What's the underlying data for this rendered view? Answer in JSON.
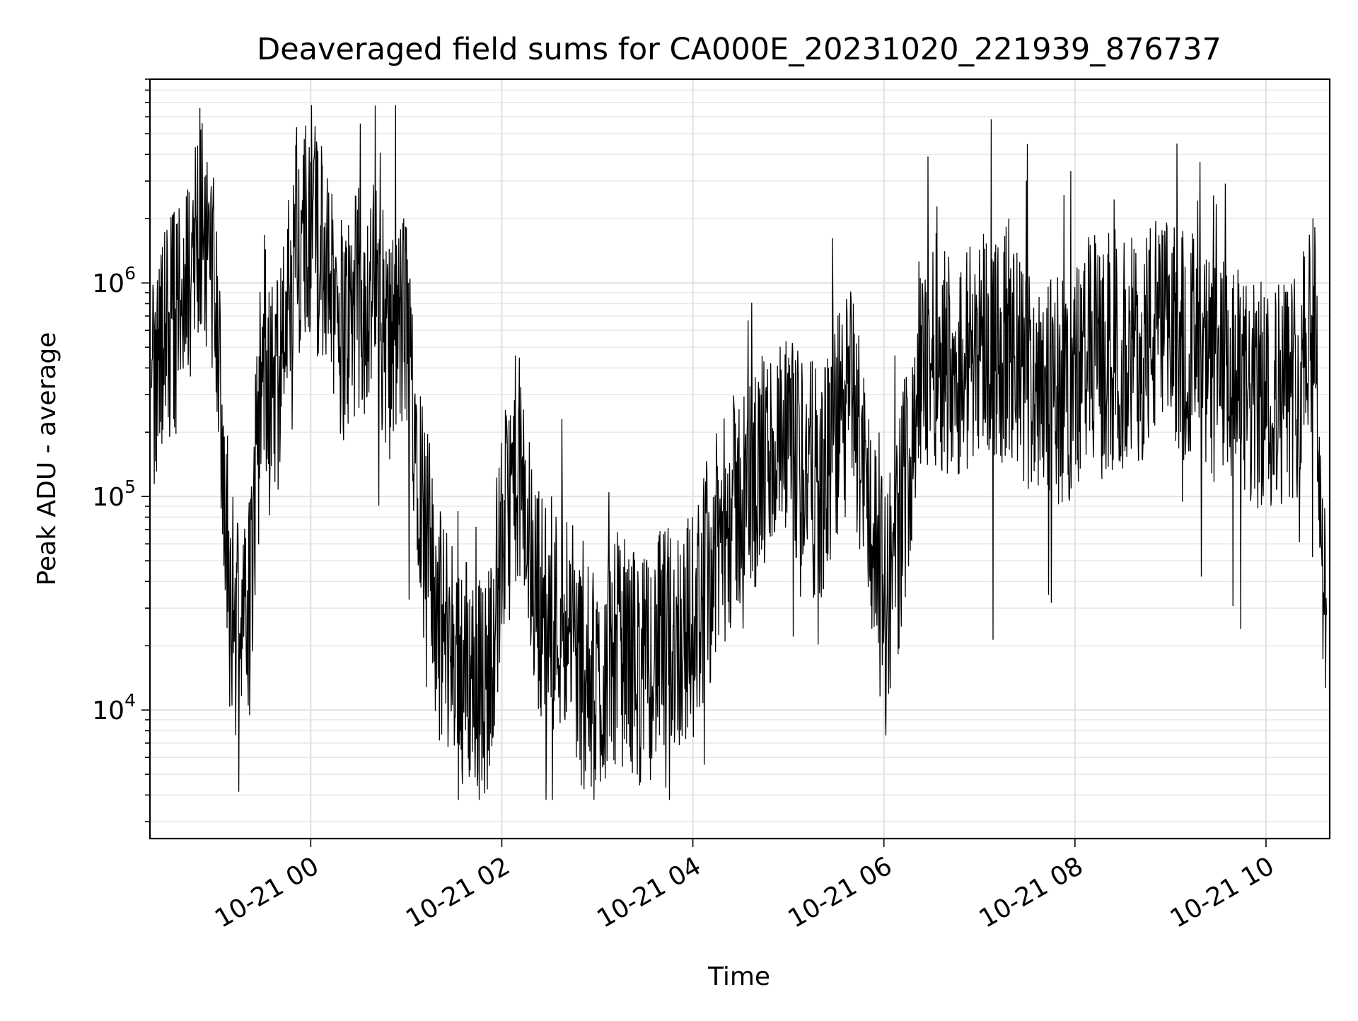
{
  "chart_data": {
    "type": "line",
    "title": "Deaveraged field sums for CA000E_20231020_221939_876737",
    "xlabel": "Time",
    "ylabel": "Peak ADU - average",
    "yscale": "log",
    "xlim": [
      "2023-10-20 22:19",
      "2023-10-21 10:40"
    ],
    "ylim": [
      2500,
      9000000
    ],
    "grid": true,
    "x_ticks": [
      {
        "value": "2023-10-21 00:00",
        "label": "10-21 00"
      },
      {
        "value": "2023-10-21 02:00",
        "label": "10-21 02"
      },
      {
        "value": "2023-10-21 04:00",
        "label": "10-21 04"
      },
      {
        "value": "2023-10-21 06:00",
        "label": "10-21 06"
      },
      {
        "value": "2023-10-21 08:00",
        "label": "10-21 08"
      },
      {
        "value": "2023-10-21 10:00",
        "label": "10-21 10"
      }
    ],
    "y_ticks": [
      {
        "value": 10000,
        "base": "10",
        "exp": "4"
      },
      {
        "value": 100000,
        "base": "10",
        "exp": "5"
      },
      {
        "value": 1000000,
        "base": "10",
        "exp": "6"
      }
    ],
    "series": [
      {
        "color": "#000000",
        "x": [
          "2023-10-20 22:20",
          "2023-10-20 22:30",
          "2023-10-20 22:40",
          "2023-10-20 22:50",
          "2023-10-20 23:00",
          "2023-10-20 23:10",
          "2023-10-20 23:20",
          "2023-10-20 23:30",
          "2023-10-20 23:40",
          "2023-10-20 23:50",
          "2023-10-21 00:00",
          "2023-10-21 00:10",
          "2023-10-21 00:20",
          "2023-10-21 00:30",
          "2023-10-21 00:40",
          "2023-10-21 00:50",
          "2023-10-21 01:00",
          "2023-10-21 01:10",
          "2023-10-21 01:20",
          "2023-10-21 01:30",
          "2023-10-21 01:40",
          "2023-10-21 01:50",
          "2023-10-21 02:00",
          "2023-10-21 02:10",
          "2023-10-21 02:20",
          "2023-10-21 02:30",
          "2023-10-21 02:40",
          "2023-10-21 02:50",
          "2023-10-21 03:00",
          "2023-10-21 03:10",
          "2023-10-21 03:20",
          "2023-10-21 03:30",
          "2023-10-21 03:40",
          "2023-10-21 03:50",
          "2023-10-21 04:00",
          "2023-10-21 04:10",
          "2023-10-21 04:20",
          "2023-10-21 04:30",
          "2023-10-21 04:40",
          "2023-10-21 04:50",
          "2023-10-21 05:00",
          "2023-10-21 05:10",
          "2023-10-21 05:20",
          "2023-10-21 05:30",
          "2023-10-21 05:40",
          "2023-10-21 05:50",
          "2023-10-21 06:00",
          "2023-10-21 06:10",
          "2023-10-21 06:20",
          "2023-10-21 06:30",
          "2023-10-21 06:40",
          "2023-10-21 06:50",
          "2023-10-21 07:00",
          "2023-10-21 07:10",
          "2023-10-21 07:20",
          "2023-10-21 07:30",
          "2023-10-21 07:40",
          "2023-10-21 07:50",
          "2023-10-21 08:00",
          "2023-10-21 08:10",
          "2023-10-21 08:20",
          "2023-10-21 08:30",
          "2023-10-21 08:40",
          "2023-10-21 08:50",
          "2023-10-21 09:00",
          "2023-10-21 09:10",
          "2023-10-21 09:20",
          "2023-10-21 09:30",
          "2023-10-21 09:40",
          "2023-10-21 09:50",
          "2023-10-21 10:00",
          "2023-10-21 10:10",
          "2023-10-21 10:20",
          "2023-10-21 10:30",
          "2023-10-21 10:38"
        ],
        "y": [
          300000,
          600000,
          700000,
          2000000,
          1000000,
          30000,
          20000,
          500000,
          300000,
          1500000,
          2000000,
          1000000,
          600000,
          800000,
          900000,
          500000,
          700000,
          100000,
          25000,
          20000,
          15000,
          12000,
          60000,
          150000,
          40000,
          25000,
          30000,
          15000,
          12000,
          20000,
          18000,
          15000,
          20000,
          22000,
          25000,
          45000,
          70000,
          100000,
          120000,
          160000,
          150000,
          150000,
          100000,
          200000,
          300000,
          100000,
          30000,
          70000,
          300000,
          500000,
          450000,
          400000,
          600000,
          500000,
          450000,
          350000,
          400000,
          300000,
          350000,
          500000,
          400000,
          450000,
          500000,
          600000,
          550000,
          600000,
          400000,
          380000,
          350000,
          280000,
          300000,
          320000,
          350000,
          1000000,
          15000
        ]
      }
    ]
  }
}
